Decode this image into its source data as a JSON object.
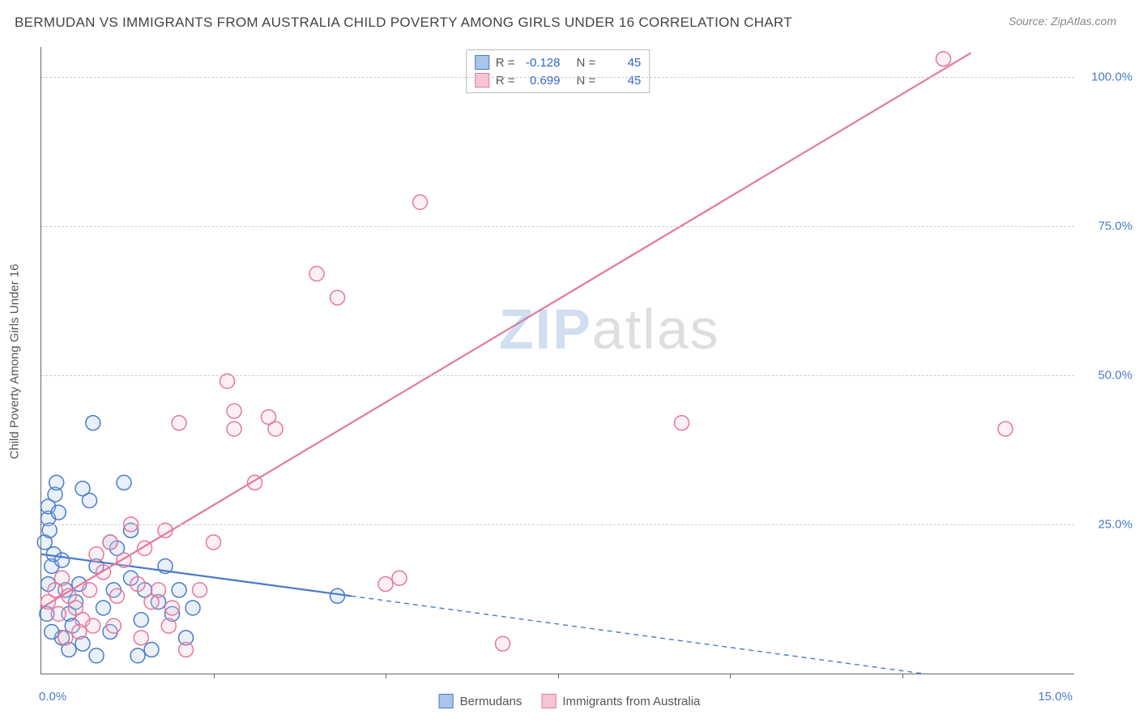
{
  "header": {
    "title": "BERMUDAN VS IMMIGRANTS FROM AUSTRALIA CHILD POVERTY AMONG GIRLS UNDER 16 CORRELATION CHART",
    "source": "Source: ZipAtlas.com"
  },
  "chart": {
    "type": "scatter",
    "ylabel": "Child Poverty Among Girls Under 16",
    "xlim": [
      0,
      15
    ],
    "ylim": [
      0,
      105
    ],
    "yticks": [
      {
        "v": 25,
        "label": "25.0%"
      },
      {
        "v": 50,
        "label": "50.0%"
      },
      {
        "v": 75,
        "label": "75.0%"
      },
      {
        "v": 100,
        "label": "100.0%"
      }
    ],
    "xtick_left": {
      "v": 0,
      "label": "0.0%"
    },
    "xtick_right": {
      "v": 15,
      "label": "15.0%"
    },
    "xtick_marks": [
      2.5,
      5.0,
      7.5,
      10.0,
      12.5
    ],
    "background_color": "#ffffff",
    "grid_color": "#cccccc",
    "marker_radius": 9,
    "marker_stroke_width": 1.5,
    "marker_fill_opacity": 0.25,
    "line_width": 2.2,
    "series": [
      {
        "name": "Bermudans",
        "color_stroke": "#4a7bc8",
        "color_fill": "#a9c5ea",
        "R": "-0.128",
        "N": "45",
        "trend": {
          "x1": 0,
          "y1": 20,
          "x2_solid": 4.5,
          "y2_solid": 13,
          "x2_dash": 12.8,
          "y2_dash": 0
        },
        "points": [
          [
            0.05,
            22
          ],
          [
            0.1,
            26
          ],
          [
            0.1,
            28
          ],
          [
            0.12,
            24
          ],
          [
            0.15,
            18
          ],
          [
            0.1,
            15
          ],
          [
            0.18,
            20
          ],
          [
            0.2,
            30
          ],
          [
            0.22,
            32
          ],
          [
            0.25,
            27
          ],
          [
            0.3,
            19
          ],
          [
            0.35,
            14
          ],
          [
            0.4,
            10
          ],
          [
            0.45,
            8
          ],
          [
            0.5,
            12
          ],
          [
            0.55,
            15
          ],
          [
            0.6,
            31
          ],
          [
            0.7,
            29
          ],
          [
            0.75,
            42
          ],
          [
            0.8,
            18
          ],
          [
            0.9,
            11
          ],
          [
            1.0,
            7
          ],
          [
            1.05,
            14
          ],
          [
            1.1,
            21
          ],
          [
            1.2,
            32
          ],
          [
            1.3,
            16
          ],
          [
            1.4,
            3
          ],
          [
            1.45,
            9
          ],
          [
            1.5,
            14
          ],
          [
            1.6,
            4
          ],
          [
            1.7,
            12
          ],
          [
            1.8,
            18
          ],
          [
            1.9,
            10
          ],
          [
            2.0,
            14
          ],
          [
            2.1,
            6
          ],
          [
            2.2,
            11
          ],
          [
            0.3,
            6
          ],
          [
            0.4,
            4
          ],
          [
            0.6,
            5
          ],
          [
            0.8,
            3
          ],
          [
            1.0,
            22
          ],
          [
            1.3,
            24
          ],
          [
            0.08,
            10
          ],
          [
            0.15,
            7
          ],
          [
            4.3,
            13
          ]
        ]
      },
      {
        "name": "Immigrants from Australia",
        "color_stroke": "#e5789b",
        "color_fill": "#f5c5d5",
        "R": "0.699",
        "N": "45",
        "trend": {
          "x1": 0,
          "y1": 11,
          "x2_solid": 13.5,
          "y2_solid": 104,
          "x2_dash": 13.5,
          "y2_dash": 104
        },
        "points": [
          [
            0.1,
            12
          ],
          [
            0.2,
            14
          ],
          [
            0.25,
            10
          ],
          [
            0.3,
            16
          ],
          [
            0.4,
            13
          ],
          [
            0.5,
            11
          ],
          [
            0.6,
            9
          ],
          [
            0.7,
            14
          ],
          [
            0.8,
            20
          ],
          [
            0.9,
            17
          ],
          [
            1.0,
            22
          ],
          [
            1.1,
            13
          ],
          [
            1.2,
            19
          ],
          [
            1.3,
            25
          ],
          [
            1.4,
            15
          ],
          [
            1.5,
            21
          ],
          [
            1.6,
            12
          ],
          [
            1.7,
            14
          ],
          [
            1.8,
            24
          ],
          [
            1.9,
            11
          ],
          [
            2.0,
            42
          ],
          [
            2.1,
            4
          ],
          [
            2.3,
            14
          ],
          [
            2.5,
            22
          ],
          [
            2.7,
            49
          ],
          [
            2.8,
            41
          ],
          [
            2.8,
            44
          ],
          [
            3.1,
            32
          ],
          [
            3.3,
            43
          ],
          [
            3.4,
            41
          ],
          [
            4.0,
            67
          ],
          [
            4.3,
            63
          ],
          [
            5.0,
            15
          ],
          [
            5.2,
            16
          ],
          [
            5.5,
            79
          ],
          [
            6.7,
            5
          ],
          [
            9.3,
            42
          ],
          [
            13.1,
            103
          ],
          [
            14.0,
            41
          ],
          [
            0.35,
            6
          ],
          [
            0.55,
            7
          ],
          [
            0.75,
            8
          ],
          [
            1.05,
            8
          ],
          [
            1.45,
            6
          ],
          [
            1.85,
            8
          ]
        ]
      }
    ]
  },
  "legend_bottom": {
    "items": [
      {
        "label": "Bermudans",
        "stroke": "#4a7bc8",
        "fill": "#a9c5ea"
      },
      {
        "label": "Immigrants from Australia",
        "stroke": "#e5789b",
        "fill": "#f5c5d5"
      }
    ]
  },
  "watermark": {
    "z": "ZIP",
    "rest": "atlas"
  }
}
